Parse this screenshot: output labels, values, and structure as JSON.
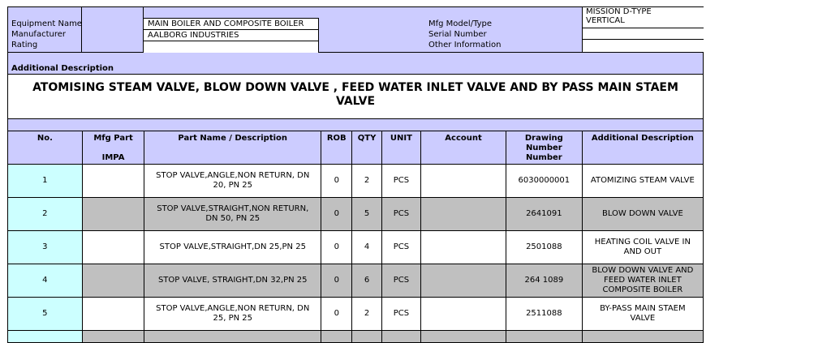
{
  "header": {
    "equipment_name_label": "Equipment Name",
    "manufacturer_label": "Manufacturer",
    "rating_label": "Rating",
    "equipment_name_value": "MAIN BOILER AND COMPOSITE BOILER",
    "manufacturer_value": "AALBORG INDUSTRIES",
    "rating_value": "",
    "mfg_model_label": "Mfg Model/Type",
    "serial_label": "Serial Number",
    "other_label": "Other Information",
    "mfg_model_value_line1": "MISSION D-TYPE",
    "mfg_model_value_line2": "VERTICAL",
    "serial_value": "",
    "other_value": ""
  },
  "additional_description_label": "Additional Description",
  "title": "ATOMISING STEAM VALVE, BLOW DOWN VALVE , FEED WATER INLET VALVE AND BY PASS MAIN STAEM VALVE",
  "columns": {
    "no": "No.",
    "mfg_part_line1": "Mfg Part",
    "mfg_part_line2": "IMPA",
    "part_name": "Part Name / Description",
    "rob": "ROB",
    "qty": "QTY",
    "unit": "UNIT",
    "account": "Account",
    "drawing_line1": "Drawing",
    "drawing_line2": "Number",
    "drawing_line3": "Number",
    "additional": "Additional Description"
  },
  "rows": [
    {
      "no": "1",
      "mfg": "",
      "name": "STOP VALVE,ANGLE,NON RETURN, DN 20, PN 25",
      "rob": "0",
      "qty": "2",
      "unit": "PCS",
      "account": "",
      "drawing": "6030000001",
      "desc": "ATOMIZING STEAM VALVE"
    },
    {
      "no": "2",
      "mfg": "",
      "name": "STOP VALVE,STRAIGHT,NON RETURN, DN 50, PN 25",
      "rob": "0",
      "qty": "5",
      "unit": "PCS",
      "account": "",
      "drawing": "2641091",
      "desc": "BLOW DOWN VALVE"
    },
    {
      "no": "3",
      "mfg": "",
      "name": "STOP VALVE,STRAIGHT,DN 25,PN 25",
      "rob": "0",
      "qty": "4",
      "unit": "PCS",
      "account": "",
      "drawing": "2501088",
      "desc": "HEATING COIL VALVE IN AND OUT"
    },
    {
      "no": "4",
      "mfg": "",
      "name": "STOP VALVE, STRAIGHT,DN 32,PN 25",
      "rob": "0",
      "qty": "6",
      "unit": "PCS",
      "account": "",
      "drawing": "264 1089",
      "desc": "BLOW DOWN VALVE AND FEED WATER INLET COMPOSITE BOILER"
    },
    {
      "no": "5",
      "mfg": "",
      "name": "STOP VALVE,ANGLE,NON RETURN, DN 25, PN 25",
      "rob": "0",
      "qty": "2",
      "unit": "PCS",
      "account": "",
      "drawing": "2511088",
      "desc": "BY-PASS MAIN STAEM VALVE"
    }
  ]
}
